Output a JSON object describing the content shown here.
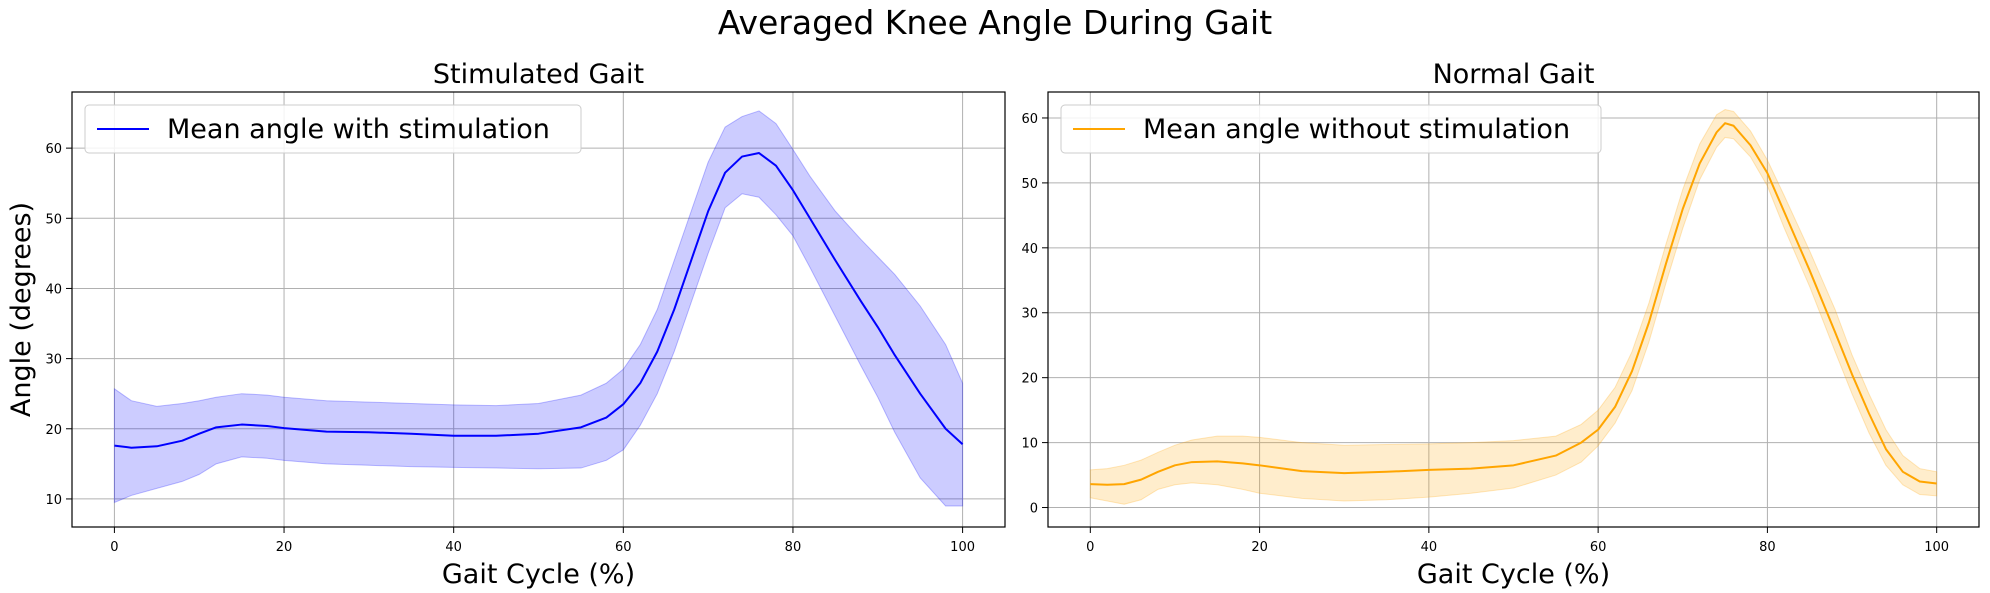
{
  "figure": {
    "title": "Averaged Knee Angle During Gait"
  },
  "chart_data": [
    {
      "type": "line",
      "title": "Stimulated Gait",
      "xlabel": "Gait Cycle (%)",
      "ylabel": "Angle (degrees)",
      "xlim": [
        -5,
        105
      ],
      "ylim": [
        6,
        68
      ],
      "xticks": [
        0,
        20,
        40,
        60,
        80,
        100
      ],
      "yticks": [
        10,
        20,
        30,
        40,
        50,
        60
      ],
      "grid": true,
      "legend_position": "upper-left",
      "series": [
        {
          "name": "Mean angle with stimulation",
          "color": "#0000ff",
          "band_color": "#0000ff",
          "x": [
            0,
            2,
            5,
            8,
            10,
            12,
            15,
            18,
            20,
            25,
            30,
            35,
            40,
            45,
            50,
            55,
            58,
            60,
            62,
            64,
            66,
            68,
            70,
            72,
            74,
            76,
            78,
            80,
            82,
            85,
            88,
            90,
            92,
            95,
            98,
            100
          ],
          "y": [
            17.6,
            17.3,
            17.5,
            18.3,
            19.3,
            20.2,
            20.6,
            20.4,
            20.1,
            19.6,
            19.5,
            19.3,
            19.0,
            19.0,
            19.3,
            20.2,
            21.6,
            23.5,
            26.5,
            31.0,
            37.0,
            44.0,
            51.0,
            56.5,
            58.8,
            59.3,
            57.5,
            54.0,
            50.0,
            44.0,
            38.2,
            34.5,
            30.5,
            25.0,
            20.0,
            17.8
          ],
          "lower": [
            9.5,
            10.5,
            11.5,
            12.5,
            13.5,
            15.0,
            16.0,
            15.8,
            15.5,
            15.0,
            14.8,
            14.6,
            14.5,
            14.4,
            14.3,
            14.4,
            15.5,
            17.0,
            20.5,
            25.0,
            31.0,
            38.0,
            45.0,
            51.5,
            53.5,
            53.0,
            50.5,
            47.5,
            43.0,
            36.0,
            29.0,
            24.5,
            19.5,
            13.0,
            9.0,
            9.0
          ],
          "upper": [
            25.7,
            24.0,
            23.2,
            23.6,
            24.0,
            24.5,
            25.0,
            24.8,
            24.5,
            24.0,
            23.8,
            23.6,
            23.4,
            23.3,
            23.6,
            24.8,
            26.5,
            28.5,
            32.0,
            37.0,
            44.0,
            51.0,
            58.0,
            63.0,
            64.5,
            65.3,
            63.5,
            59.8,
            56.0,
            51.0,
            47.0,
            44.5,
            42.0,
            37.5,
            32.0,
            26.5
          ]
        }
      ]
    },
    {
      "type": "line",
      "title": "Normal Gait",
      "xlabel": "Gait Cycle (%)",
      "ylabel": "",
      "xlim": [
        -5,
        105
      ],
      "ylim": [
        -3,
        64
      ],
      "xticks": [
        0,
        20,
        40,
        60,
        80,
        100
      ],
      "yticks": [
        0,
        10,
        20,
        30,
        40,
        50,
        60
      ],
      "grid": true,
      "legend_position": "upper-left",
      "series": [
        {
          "name": "Mean angle without stimulation",
          "color": "#ffa500",
          "band_color": "#ffa500",
          "x": [
            0,
            2,
            4,
            6,
            8,
            10,
            12,
            15,
            18,
            20,
            25,
            30,
            35,
            40,
            45,
            50,
            55,
            58,
            60,
            62,
            64,
            66,
            68,
            70,
            72,
            74,
            75,
            76,
            78,
            80,
            82,
            85,
            88,
            90,
            92,
            94,
            96,
            98,
            100
          ],
          "y": [
            3.6,
            3.5,
            3.6,
            4.3,
            5.5,
            6.5,
            7.0,
            7.1,
            6.8,
            6.5,
            5.6,
            5.3,
            5.5,
            5.8,
            6.0,
            6.5,
            8.0,
            10.0,
            12.0,
            15.5,
            21.0,
            28.5,
            37.5,
            46.0,
            53.0,
            57.8,
            59.2,
            58.8,
            55.8,
            51.5,
            45.5,
            36.5,
            27.0,
            20.5,
            14.5,
            9.0,
            5.5,
            4.0,
            3.7
          ],
          "lower": [
            1.5,
            1.0,
            0.5,
            1.2,
            2.8,
            3.5,
            3.8,
            3.5,
            2.8,
            2.2,
            1.4,
            1.0,
            1.2,
            1.6,
            2.2,
            3.0,
            5.0,
            7.0,
            9.5,
            13.0,
            18.0,
            25.5,
            34.5,
            43.0,
            50.5,
            55.5,
            57.0,
            56.8,
            54.0,
            49.5,
            43.0,
            34.0,
            24.0,
            17.5,
            11.5,
            6.5,
            3.5,
            2.0,
            1.8
          ],
          "upper": [
            5.8,
            6.0,
            6.5,
            7.3,
            8.5,
            9.6,
            10.4,
            11.0,
            11.0,
            10.8,
            10.0,
            9.6,
            9.7,
            9.8,
            10.0,
            10.3,
            11.0,
            12.8,
            15.0,
            18.5,
            24.0,
            31.5,
            40.5,
            49.0,
            56.0,
            60.5,
            61.3,
            61.0,
            58.0,
            53.5,
            48.0,
            39.5,
            30.5,
            23.5,
            17.5,
            12.0,
            8.0,
            6.0,
            5.5
          ]
        }
      ]
    }
  ]
}
